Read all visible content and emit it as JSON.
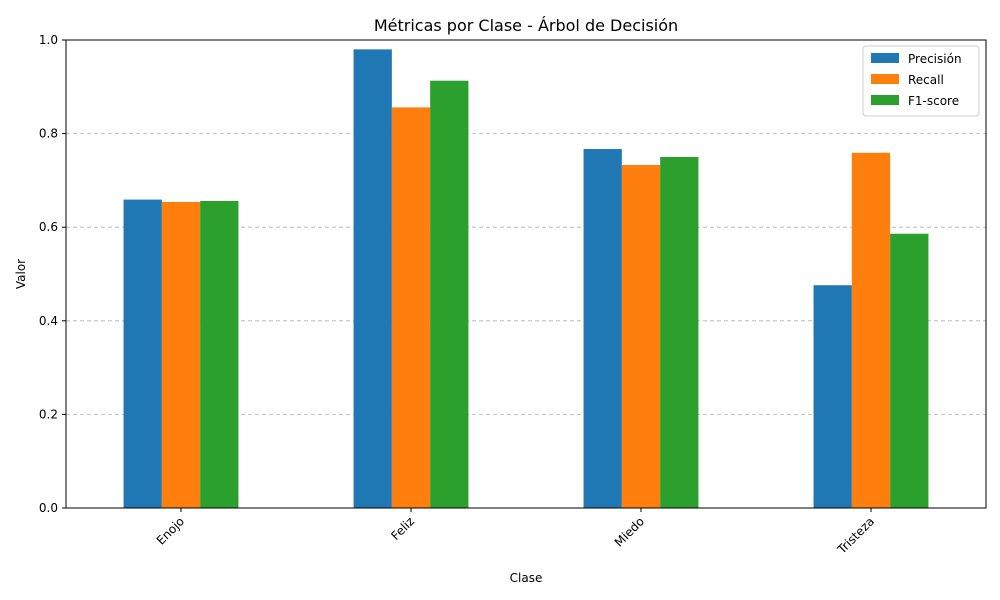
{
  "chart_data": {
    "type": "bar",
    "title": "Métricas por Clase - Árbol de Decisión",
    "xlabel": "Clase",
    "ylabel": "Valor",
    "categories": [
      "Enojo",
      "Feliz",
      "Miedo",
      "Tristeza"
    ],
    "series": [
      {
        "name": "Precisión",
        "color": "#1f77b4",
        "values": [
          0.659,
          0.98,
          0.767,
          0.476
        ]
      },
      {
        "name": "Recall",
        "color": "#ff7f0e",
        "values": [
          0.654,
          0.856,
          0.733,
          0.759
        ]
      },
      {
        "name": "F1-score",
        "color": "#2ca02c",
        "values": [
          0.656,
          0.913,
          0.75,
          0.586
        ]
      }
    ],
    "ylim": [
      0,
      1.0
    ],
    "yticks": [
      "0.0",
      "0.2",
      "0.4",
      "0.6",
      "0.8",
      "1.0"
    ],
    "grid": "y-dashed",
    "legend_position": "top-right"
  }
}
